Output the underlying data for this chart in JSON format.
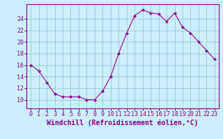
{
  "x": [
    0,
    1,
    2,
    3,
    4,
    5,
    6,
    7,
    8,
    9,
    10,
    11,
    12,
    13,
    14,
    15,
    16,
    17,
    18,
    19,
    20,
    21,
    22,
    23
  ],
  "y": [
    16.0,
    15.0,
    13.0,
    11.0,
    10.5,
    10.5,
    10.5,
    10.0,
    10.0,
    11.5,
    14.0,
    18.0,
    21.5,
    24.5,
    25.5,
    25.0,
    24.8,
    23.5,
    25.0,
    22.5,
    21.5,
    20.0,
    18.5,
    17.0
  ],
  "line_color": "#990099",
  "marker": "D",
  "marker_size": 2,
  "bg_color": "#cceeff",
  "grid_color": "#99cccc",
  "xlabel": "Windchill (Refroidissement éolien,°C)",
  "xlabel_fontsize": 7,
  "tick_fontsize": 6,
  "tick_color": "#880088",
  "label_color": "#880088",
  "ylim": [
    8.5,
    26.5
  ],
  "yticks": [
    10,
    12,
    14,
    16,
    18,
    20,
    22,
    24
  ],
  "xlim": [
    -0.5,
    23.5
  ],
  "xticks": [
    0,
    1,
    2,
    3,
    4,
    5,
    6,
    7,
    8,
    9,
    10,
    11,
    12,
    13,
    14,
    15,
    16,
    17,
    18,
    19,
    20,
    21,
    22,
    23
  ]
}
